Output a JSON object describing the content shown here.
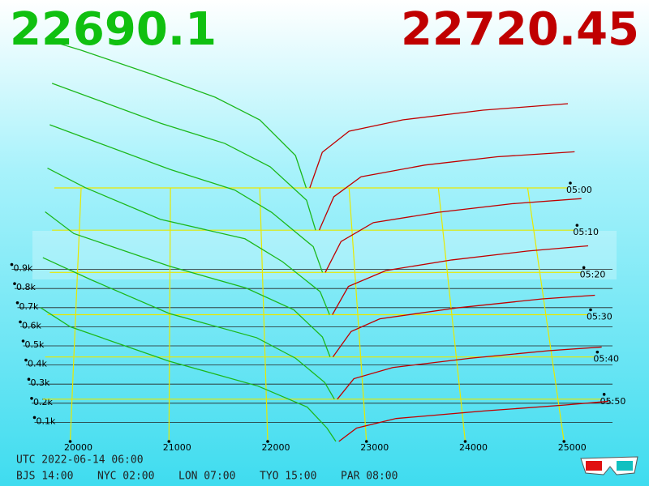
{
  "chart_data": {
    "type": "depth3d",
    "bid": 22690.1,
    "ask": 22720.45,
    "bid_color": "#1cb81c",
    "ask_color": "#c00000",
    "xlim": [
      19700,
      25450
    ],
    "xticks": [
      20000,
      21000,
      22000,
      23000,
      24000,
      25000
    ],
    "ylim": [
      0,
      1000
    ],
    "yticks": [
      {
        "value": 100,
        "label": "0.1k"
      },
      {
        "value": 200,
        "label": "0.2k"
      },
      {
        "value": 300,
        "label": "0.3k"
      },
      {
        "value": 400,
        "label": "0.4k"
      },
      {
        "value": 500,
        "label": "0.5k"
      },
      {
        "value": 600,
        "label": "0.6k"
      },
      {
        "value": 700,
        "label": "0.7k"
      },
      {
        "value": 800,
        "label": "0.8k"
      },
      {
        "value": 900,
        "label": "0.9k"
      }
    ],
    "zlim": [
      300,
      360
    ],
    "zticks": [
      {
        "value": 300,
        "label": "05:00"
      },
      {
        "value": 310,
        "label": "05:10"
      },
      {
        "value": 320,
        "label": "05:20"
      },
      {
        "value": 330,
        "label": "05:30"
      },
      {
        "value": 340,
        "label": "05:40"
      },
      {
        "value": 350,
        "label": "05:50"
      }
    ],
    "snapshots": [
      {
        "t": 300,
        "bid_prices": [
          19700,
          20000,
          20800,
          21500,
          22000,
          22400,
          22520
        ],
        "bid_depth": [
          900,
          850,
          700,
          560,
          420,
          200,
          0
        ],
        "ask_prices": [
          22560,
          22700,
          23000,
          23600,
          24500,
          25450
        ],
        "ask_depth": [
          0,
          220,
          350,
          420,
          480,
          520
        ]
      },
      {
        "t": 310,
        "bid_prices": [
          19700,
          20100,
          20900,
          21600,
          22100,
          22500,
          22600
        ],
        "bid_depth": [
          880,
          800,
          640,
          520,
          380,
          180,
          0
        ],
        "ask_prices": [
          22640,
          22800,
          23100,
          23800,
          24600,
          25450
        ],
        "ask_depth": [
          0,
          200,
          320,
          390,
          440,
          470
        ]
      },
      {
        "t": 320,
        "bid_prices": [
          19700,
          20200,
          21000,
          21700,
          22100,
          22550,
          22650
        ],
        "bid_depth": [
          860,
          760,
          600,
          480,
          350,
          150,
          0
        ],
        "ask_prices": [
          22680,
          22850,
          23200,
          23900,
          24700,
          25450
        ],
        "ask_depth": [
          0,
          180,
          290,
          350,
          400,
          430
        ]
      },
      {
        "t": 330,
        "bid_prices": [
          19700,
          20100,
          20900,
          21800,
          22200,
          22600,
          22700
        ],
        "bid_depth": [
          830,
          720,
          540,
          430,
          300,
          130,
          0
        ],
        "ask_prices": [
          22730,
          22900,
          23300,
          24000,
          24800,
          25450
        ],
        "ask_depth": [
          0,
          160,
          250,
          310,
          360,
          390
        ]
      },
      {
        "t": 340,
        "bid_prices": [
          19700,
          20000,
          21000,
          21800,
          22300,
          22600,
          22680
        ],
        "bid_depth": [
          800,
          680,
          500,
          380,
          260,
          110,
          0
        ],
        "ask_prices": [
          22710,
          22900,
          23200,
          24000,
          24900,
          25450
        ],
        "ask_depth": [
          0,
          140,
          210,
          270,
          320,
          340
        ]
      },
      {
        "t": 350,
        "bid_prices": [
          19700,
          20200,
          21000,
          21900,
          22300,
          22600,
          22700
        ],
        "bid_depth": [
          760,
          640,
          460,
          330,
          220,
          90,
          0
        ],
        "ask_prices": [
          22730,
          22900,
          23300,
          24100,
          24900,
          25450
        ],
        "ask_depth": [
          0,
          110,
          170,
          220,
          260,
          280
        ]
      },
      {
        "t": 360,
        "bid_prices": [
          19700,
          20000,
          21000,
          21900,
          22400,
          22600,
          22690.1
        ],
        "bid_depth": [
          700,
          600,
          420,
          290,
          180,
          70,
          0
        ],
        "ask_prices": [
          22720.45,
          22900,
          23300,
          24200,
          25000,
          25450
        ],
        "ask_depth": [
          0,
          70,
          120,
          160,
          190,
          210
        ]
      }
    ],
    "utc": "UTC 2022-06-14 06:00",
    "clocks": [
      "BJS 14:00",
      "NYC 02:00",
      "LON 07:00",
      "TYO 15:00",
      "PAR 08:00"
    ]
  }
}
